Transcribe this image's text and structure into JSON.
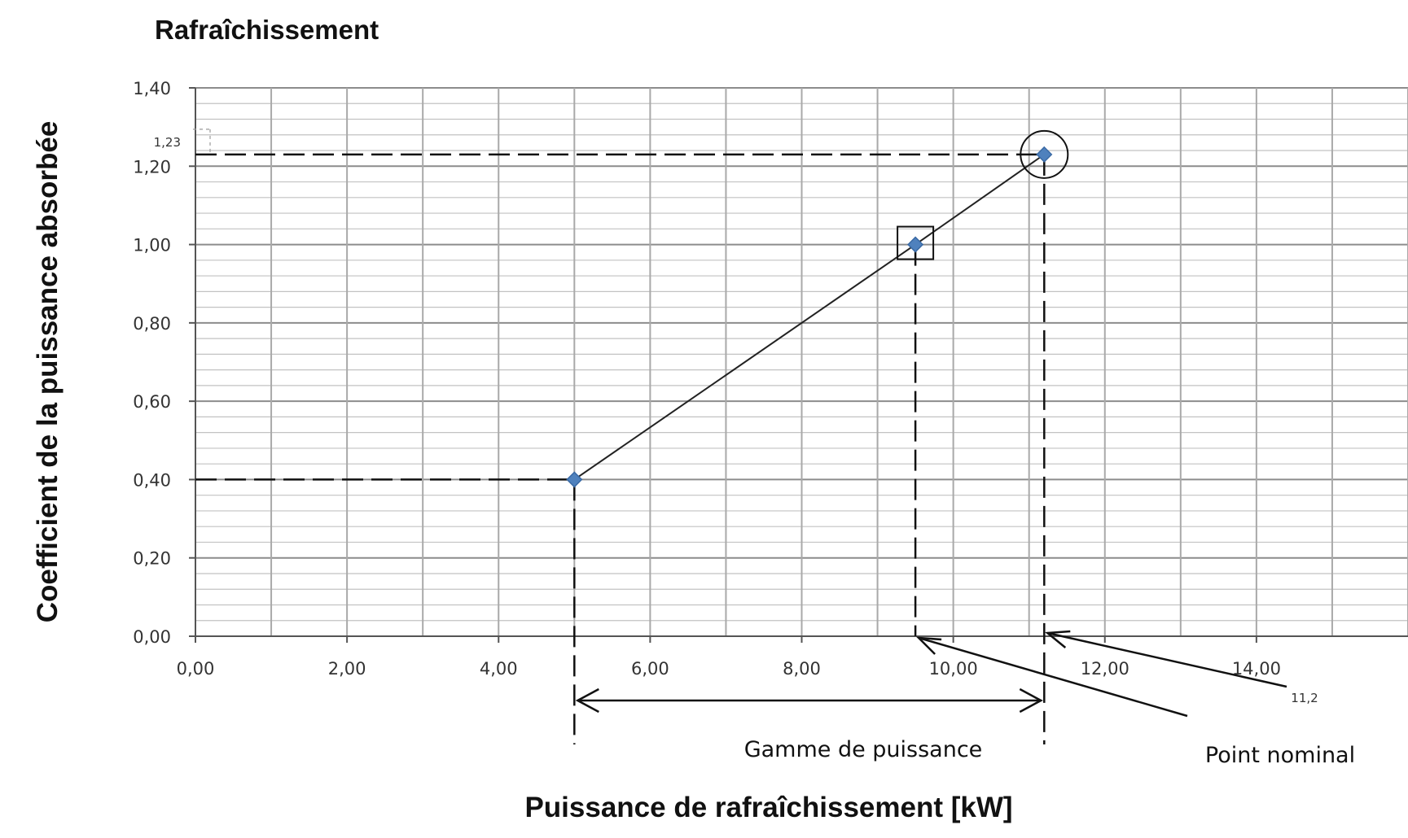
{
  "chart_data": {
    "type": "line",
    "title": "Rafraîchissement",
    "xlabel": "Puissance de rafraîchissement [kW]",
    "ylabel": "Coefficient de la puissance absorbée",
    "xlim": [
      0,
      14
    ],
    "ylim": [
      0,
      1.4
    ],
    "x_ticks": [
      "0,00",
      "2,00",
      "4,00",
      "6,00",
      "8,00",
      "10,00",
      "12,00",
      "14,00"
    ],
    "y_ticks": [
      "0,00",
      "0,20",
      "0,40",
      "0,60",
      "0,80",
      "1,00",
      "1,20",
      "1,40"
    ],
    "grid": true,
    "series": [
      {
        "x": [
          5.0,
          9.5,
          11.2
        ],
        "y": [
          0.4,
          1.0,
          1.23
        ]
      }
    ],
    "marker_color": "#4f81bd",
    "annotations": {
      "y_marker_label": "1,23",
      "x_marker_label": "11,2",
      "range_label": "Gamme de puissance",
      "nominal_label": "Point nominal"
    }
  }
}
